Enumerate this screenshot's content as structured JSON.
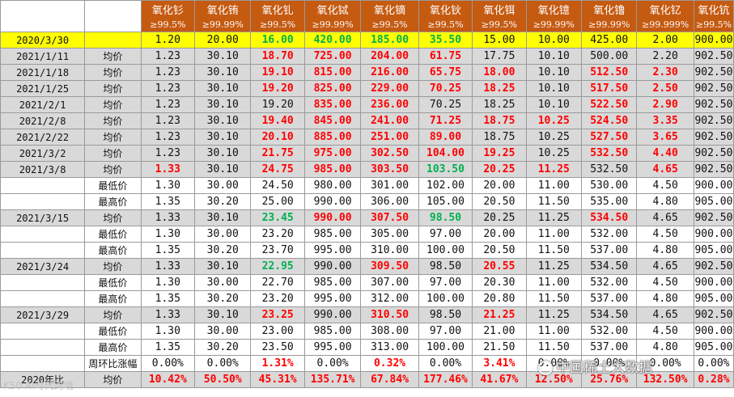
{
  "headers": [
    {
      "name": "氧化钐",
      "purity": "≥99.5%"
    },
    {
      "name": "氧化铕",
      "purity": "≥99.99%"
    },
    {
      "name": "氧化钆",
      "purity": "≥99.5%"
    },
    {
      "name": "氧化铽",
      "purity": "≥99.99%"
    },
    {
      "name": "氧化镝",
      "purity": "≥99.5%"
    },
    {
      "name": "氧化钬",
      "purity": "≥99.5%"
    },
    {
      "name": "氧化铒",
      "purity": "≥99.5%"
    },
    {
      "name": "氧化镱",
      "purity": "≥99.99%"
    },
    {
      "name": "氧化镥",
      "purity": "≥99.99%"
    },
    {
      "name": "氧化钇",
      "purity": "≥99.999%"
    },
    {
      "name": "氧化钪",
      "purity": "≥99.5%"
    }
  ],
  "colors": {
    "header_bg": "#c55a11",
    "base_row_bg": "#ffff00",
    "avg_row_bg": "#d9d9d9",
    "rise": "#ff0000",
    "fall": "#00b050"
  },
  "rows": [
    {
      "date": "2020/3/30",
      "label": "",
      "style": "base",
      "cells": [
        [
          "1.20",
          ""
        ],
        [
          "20.00",
          ""
        ],
        [
          "16.00",
          "green"
        ],
        [
          "420.00",
          "green"
        ],
        [
          "185.00",
          "green"
        ],
        [
          "35.50",
          "green"
        ],
        [
          "15.00",
          ""
        ],
        [
          "10.00",
          ""
        ],
        [
          "425.00",
          ""
        ],
        [
          "2.00",
          ""
        ],
        [
          "900.00",
          ""
        ]
      ]
    },
    {
      "date": "2021/1/11",
      "label": "均价",
      "style": "avg",
      "cells": [
        [
          "1.23",
          ""
        ],
        [
          "30.10",
          ""
        ],
        [
          "18.70",
          "red"
        ],
        [
          "725.00",
          "red"
        ],
        [
          "204.00",
          "red"
        ],
        [
          "61.75",
          "red"
        ],
        [
          "17.75",
          ""
        ],
        [
          "10.10",
          ""
        ],
        [
          "500.00",
          ""
        ],
        [
          "2.20",
          ""
        ],
        [
          "902.50",
          ""
        ]
      ]
    },
    {
      "date": "2021/1/18",
      "label": "均价",
      "style": "avg",
      "cells": [
        [
          "1.23",
          ""
        ],
        [
          "30.10",
          ""
        ],
        [
          "19.10",
          "red"
        ],
        [
          "815.00",
          "red"
        ],
        [
          "216.00",
          "red"
        ],
        [
          "65.75",
          "red"
        ],
        [
          "18.00",
          "red"
        ],
        [
          "10.10",
          ""
        ],
        [
          "512.50",
          "red"
        ],
        [
          "2.30",
          "red"
        ],
        [
          "902.50",
          ""
        ]
      ]
    },
    {
      "date": "2021/1/25",
      "label": "均价",
      "style": "avg",
      "cells": [
        [
          "1.23",
          ""
        ],
        [
          "30.10",
          ""
        ],
        [
          "19.20",
          "red"
        ],
        [
          "825.00",
          "red"
        ],
        [
          "229.00",
          "red"
        ],
        [
          "70.25",
          "red"
        ],
        [
          "18.25",
          "red"
        ],
        [
          "10.10",
          ""
        ],
        [
          "517.50",
          "red"
        ],
        [
          "2.50",
          "red"
        ],
        [
          "902.50",
          ""
        ]
      ]
    },
    {
      "date": "2021/2/1",
      "label": "均价",
      "style": "avg",
      "cells": [
        [
          "1.23",
          ""
        ],
        [
          "30.10",
          ""
        ],
        [
          "19.20",
          ""
        ],
        [
          "835.00",
          "red"
        ],
        [
          "236.00",
          "red"
        ],
        [
          "70.25",
          ""
        ],
        [
          "18.25",
          ""
        ],
        [
          "10.10",
          ""
        ],
        [
          "522.50",
          "red"
        ],
        [
          "2.90",
          "red"
        ],
        [
          "902.50",
          ""
        ]
      ]
    },
    {
      "date": "2021/2/8",
      "label": "均价",
      "style": "avg",
      "cells": [
        [
          "1.23",
          ""
        ],
        [
          "30.10",
          ""
        ],
        [
          "19.40",
          "red"
        ],
        [
          "845.00",
          "red"
        ],
        [
          "241.00",
          "red"
        ],
        [
          "71.25",
          "red"
        ],
        [
          "18.75",
          "red"
        ],
        [
          "10.25",
          "red"
        ],
        [
          "524.50",
          "red"
        ],
        [
          "3.35",
          "red"
        ],
        [
          "902.50",
          ""
        ]
      ]
    },
    {
      "date": "2021/2/22",
      "label": "均价",
      "style": "avg",
      "cells": [
        [
          "1.23",
          ""
        ],
        [
          "30.10",
          ""
        ],
        [
          "20.10",
          "red"
        ],
        [
          "885.00",
          "red"
        ],
        [
          "251.00",
          "red"
        ],
        [
          "89.00",
          "red"
        ],
        [
          "18.75",
          ""
        ],
        [
          "10.25",
          ""
        ],
        [
          "527.50",
          "red"
        ],
        [
          "3.65",
          "red"
        ],
        [
          "902.50",
          ""
        ]
      ]
    },
    {
      "date": "2021/3/2",
      "label": "均价",
      "style": "avg",
      "cells": [
        [
          "1.23",
          ""
        ],
        [
          "30.10",
          ""
        ],
        [
          "21.75",
          "red"
        ],
        [
          "975.00",
          "red"
        ],
        [
          "302.50",
          "red"
        ],
        [
          "104.00",
          "red"
        ],
        [
          "19.25",
          "red"
        ],
        [
          "10.25",
          ""
        ],
        [
          "532.50",
          "red"
        ],
        [
          "4.40",
          "red"
        ],
        [
          "902.50",
          ""
        ]
      ]
    },
    {
      "date": "2021/3/8",
      "label": "均价",
      "style": "avg",
      "cells": [
        [
          "1.33",
          "red"
        ],
        [
          "30.10",
          ""
        ],
        [
          "24.75",
          "red"
        ],
        [
          "985.00",
          "red"
        ],
        [
          "303.50",
          "red"
        ],
        [
          "103.50",
          "green"
        ],
        [
          "20.25",
          "red"
        ],
        [
          "11.25",
          "red"
        ],
        [
          "532.50",
          ""
        ],
        [
          "4.65",
          "red"
        ],
        [
          "902.50",
          ""
        ]
      ]
    },
    {
      "date": "",
      "label": "最低价",
      "style": "sub",
      "cells": [
        [
          "1.30",
          ""
        ],
        [
          "30.00",
          ""
        ],
        [
          "24.50",
          ""
        ],
        [
          "980.00",
          ""
        ],
        [
          "301.00",
          ""
        ],
        [
          "102.00",
          ""
        ],
        [
          "20.00",
          ""
        ],
        [
          "11.00",
          ""
        ],
        [
          "530.00",
          ""
        ],
        [
          "4.50",
          ""
        ],
        [
          "900.00",
          ""
        ]
      ]
    },
    {
      "date": "",
      "label": "最高价",
      "style": "sub",
      "cells": [
        [
          "1.35",
          ""
        ],
        [
          "30.20",
          ""
        ],
        [
          "25.00",
          ""
        ],
        [
          "990.00",
          ""
        ],
        [
          "306.00",
          ""
        ],
        [
          "105.00",
          ""
        ],
        [
          "20.50",
          ""
        ],
        [
          "11.50",
          ""
        ],
        [
          "535.00",
          ""
        ],
        [
          "4.80",
          ""
        ],
        [
          "905.00",
          ""
        ]
      ]
    },
    {
      "date": "2021/3/15",
      "label": "均价",
      "style": "avg",
      "cells": [
        [
          "1.33",
          ""
        ],
        [
          "30.10",
          ""
        ],
        [
          "23.45",
          "green"
        ],
        [
          "990.00",
          "red"
        ],
        [
          "307.50",
          "red"
        ],
        [
          "98.50",
          "green"
        ],
        [
          "20.25",
          ""
        ],
        [
          "11.25",
          ""
        ],
        [
          "534.50",
          "red"
        ],
        [
          "4.65",
          ""
        ],
        [
          "902.50",
          ""
        ]
      ]
    },
    {
      "date": "",
      "label": "最低价",
      "style": "sub",
      "cells": [
        [
          "1.30",
          ""
        ],
        [
          "30.00",
          ""
        ],
        [
          "23.20",
          ""
        ],
        [
          "985.00",
          ""
        ],
        [
          "305.00",
          ""
        ],
        [
          "97.00",
          ""
        ],
        [
          "20.00",
          ""
        ],
        [
          "11.00",
          ""
        ],
        [
          "532.00",
          ""
        ],
        [
          "4.50",
          ""
        ],
        [
          "900.00",
          ""
        ]
      ]
    },
    {
      "date": "",
      "label": "最高价",
      "style": "sub",
      "cells": [
        [
          "1.35",
          ""
        ],
        [
          "30.20",
          ""
        ],
        [
          "23.70",
          ""
        ],
        [
          "995.00",
          ""
        ],
        [
          "310.00",
          ""
        ],
        [
          "100.00",
          ""
        ],
        [
          "20.50",
          ""
        ],
        [
          "11.50",
          ""
        ],
        [
          "537.00",
          ""
        ],
        [
          "4.80",
          ""
        ],
        [
          "905.00",
          ""
        ]
      ]
    },
    {
      "date": "2021/3/24",
      "label": "均价",
      "style": "avg",
      "cells": [
        [
          "1.33",
          ""
        ],
        [
          "30.10",
          ""
        ],
        [
          "22.95",
          "green"
        ],
        [
          "990.00",
          ""
        ],
        [
          "309.50",
          "red"
        ],
        [
          "98.50",
          ""
        ],
        [
          "20.55",
          "red"
        ],
        [
          "11.25",
          ""
        ],
        [
          "534.50",
          ""
        ],
        [
          "4.65",
          ""
        ],
        [
          "902.50",
          ""
        ]
      ]
    },
    {
      "date": "",
      "label": "最低价",
      "style": "sub",
      "cells": [
        [
          "1.30",
          ""
        ],
        [
          "30.00",
          ""
        ],
        [
          "22.70",
          ""
        ],
        [
          "985.00",
          ""
        ],
        [
          "307.00",
          ""
        ],
        [
          "97.00",
          ""
        ],
        [
          "20.30",
          ""
        ],
        [
          "11.00",
          ""
        ],
        [
          "532.00",
          ""
        ],
        [
          "4.50",
          ""
        ],
        [
          "900.00",
          ""
        ]
      ]
    },
    {
      "date": "",
      "label": "最高价",
      "style": "sub",
      "cells": [
        [
          "1.35",
          ""
        ],
        [
          "30.20",
          ""
        ],
        [
          "23.20",
          ""
        ],
        [
          "995.00",
          ""
        ],
        [
          "312.00",
          ""
        ],
        [
          "100.00",
          ""
        ],
        [
          "20.80",
          ""
        ],
        [
          "11.50",
          ""
        ],
        [
          "537.00",
          ""
        ],
        [
          "4.80",
          ""
        ],
        [
          "905.00",
          ""
        ]
      ]
    },
    {
      "date": "2021/3/29",
      "label": "均价",
      "style": "avg",
      "cells": [
        [
          "1.33",
          ""
        ],
        [
          "30.10",
          ""
        ],
        [
          "23.25",
          "red"
        ],
        [
          "990.00",
          ""
        ],
        [
          "310.50",
          "red"
        ],
        [
          "98.50",
          ""
        ],
        [
          "21.25",
          "red"
        ],
        [
          "11.25",
          ""
        ],
        [
          "534.50",
          ""
        ],
        [
          "4.65",
          ""
        ],
        [
          "902.50",
          ""
        ]
      ]
    },
    {
      "date": "",
      "label": "最低价",
      "style": "sub",
      "cells": [
        [
          "1.30",
          ""
        ],
        [
          "30.00",
          ""
        ],
        [
          "23.00",
          ""
        ],
        [
          "985.00",
          ""
        ],
        [
          "308.00",
          ""
        ],
        [
          "97.00",
          ""
        ],
        [
          "21.00",
          ""
        ],
        [
          "11.00",
          ""
        ],
        [
          "532.00",
          ""
        ],
        [
          "4.50",
          ""
        ],
        [
          "900.00",
          ""
        ]
      ]
    },
    {
      "date": "",
      "label": "最高价",
      "style": "sub",
      "cells": [
        [
          "1.35",
          ""
        ],
        [
          "30.20",
          ""
        ],
        [
          "23.50",
          ""
        ],
        [
          "995.00",
          ""
        ],
        [
          "313.00",
          ""
        ],
        [
          "100.00",
          ""
        ],
        [
          "21.50",
          ""
        ],
        [
          "11.50",
          ""
        ],
        [
          "537.00",
          ""
        ],
        [
          "4.80",
          ""
        ],
        [
          "905.00",
          ""
        ]
      ]
    },
    {
      "date": "",
      "label": "周环比涨幅",
      "style": "sub",
      "cells": [
        [
          "0.00%",
          ""
        ],
        [
          "0.00%",
          ""
        ],
        [
          "1.31%",
          "red"
        ],
        [
          "0.00%",
          ""
        ],
        [
          "0.32%",
          "red"
        ],
        [
          "0.00%",
          ""
        ],
        [
          "3.41%",
          "red"
        ],
        [
          "0.00%",
          ""
        ],
        [
          "0.00%",
          ""
        ],
        [
          "0.00%",
          ""
        ],
        [
          "0.00%",
          ""
        ]
      ]
    },
    {
      "date": "2020年比",
      "label": "均价",
      "style": "avg",
      "cells": [
        [
          "10.42%",
          "red"
        ],
        [
          "50.50%",
          "red"
        ],
        [
          "45.31%",
          "red"
        ],
        [
          "135.71%",
          "red"
        ],
        [
          "67.84%",
          "red"
        ],
        [
          "177.46%",
          "red"
        ],
        [
          "41.67%",
          "red"
        ],
        [
          "12.50%",
          "red"
        ],
        [
          "25.76%",
          "red"
        ],
        [
          "132.50%",
          "red"
        ],
        [
          "0.28%",
          "red"
        ]
      ]
    }
  ],
  "watermarks": {
    "bottom_left": "K50 AI时代跨境",
    "bottom_right": "中国稀土大数据"
  }
}
